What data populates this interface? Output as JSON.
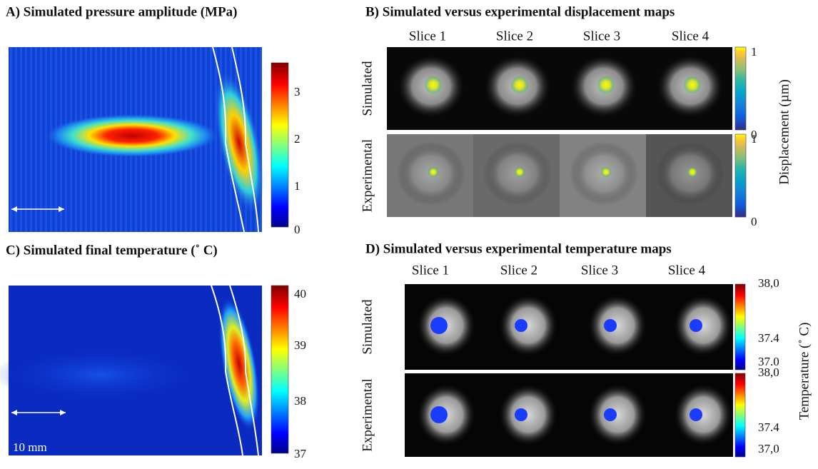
{
  "panel_a": {
    "title": "A) Simulated pressure amplitude (MPa)",
    "colorbar_ticks": [
      "3",
      "2",
      "1",
      "0"
    ]
  },
  "panel_b": {
    "title": "B) Simulated versus experimental displacement maps",
    "slices": [
      "Slice 1",
      "Slice 2",
      "Slice 3",
      "Slice 4"
    ],
    "rows": [
      "Simulated",
      "Experimental"
    ],
    "colorbar_ticks": [
      [
        "1",
        "0"
      ],
      [
        "1",
        "0"
      ]
    ],
    "colorbar_label": "Displacement (µm)"
  },
  "panel_c": {
    "title": "C) Simulated final temperature (˚ C)",
    "colorbar_ticks": [
      "40",
      "39",
      "38",
      "37"
    ],
    "scale_bar": "10 mm"
  },
  "panel_d": {
    "title": "D) Simulated versus experimental temperature maps",
    "slices": [
      "Slice 1",
      "Slice 2",
      "Slice 3",
      "Slice 4"
    ],
    "rows": [
      "Simulated",
      "Experimental"
    ],
    "colorbar_ticks": [
      [
        "38,0",
        "37.4",
        "37.0"
      ],
      [
        "38,0",
        "37.4",
        "37,0"
      ]
    ],
    "colorbar_label": "Temperature (˚ C)"
  }
}
